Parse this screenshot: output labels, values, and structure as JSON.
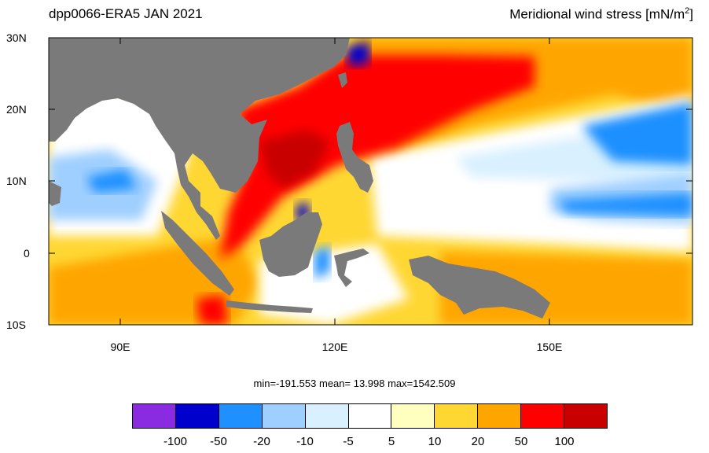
{
  "header": {
    "left_title": "dpp0066-ERA5  JAN 2021",
    "right_title": "Meridional wind stress [mN/m",
    "right_title_sup": "2",
    "right_title_end": "]"
  },
  "axes": {
    "lat_labels": [
      "30N",
      "20N",
      "10N",
      "0",
      "10S"
    ],
    "lon_labels": [
      "90E",
      "120E",
      "150E"
    ]
  },
  "stats": "min=-191.553  mean=  13.998  max=1542.509",
  "colorbar": {
    "colors": [
      "#8a2be2",
      "#0000cd",
      "#1e90ff",
      "#9fcfff",
      "#d8f0ff",
      "#ffffff",
      "#ffffc0",
      "#ffd733",
      "#ffa500",
      "#ff0000",
      "#c80000"
    ],
    "labels": [
      "-100",
      "-50",
      "-20",
      "-10",
      "-5",
      "5",
      "10",
      "20",
      "50",
      "100"
    ]
  }
}
